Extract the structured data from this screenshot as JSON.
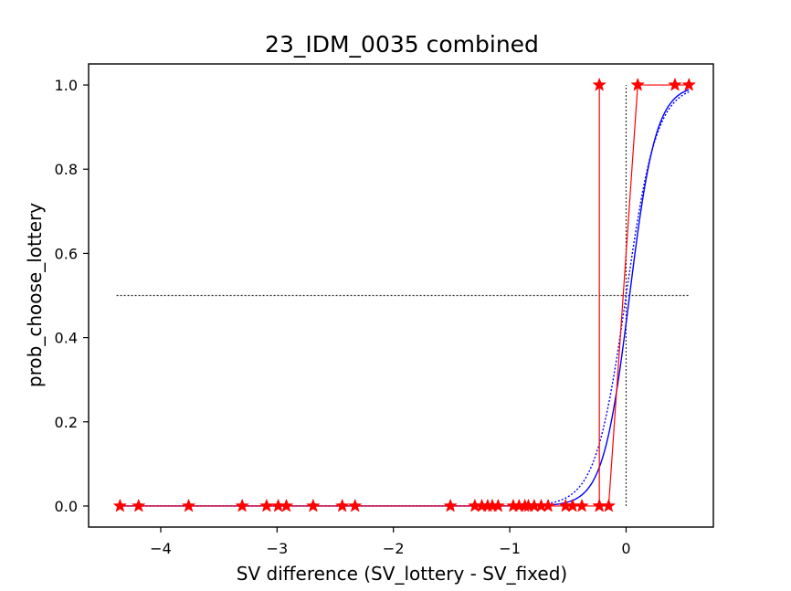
{
  "chart_data": {
    "type": "line",
    "title": "23_IDM_0035 combined",
    "xlabel": "SV difference (SV_lottery - SV_fixed)",
    "ylabel": "prob_choose_lottery",
    "xlim": [
      -4.62,
      0.75
    ],
    "ylim": [
      -0.05,
      1.05
    ],
    "x_ticks": [
      -4,
      -3,
      -2,
      -1,
      0
    ],
    "x_tick_labels": [
      "−4",
      "−3",
      "−2",
      "−1",
      "0"
    ],
    "y_ticks": [
      0.0,
      0.2,
      0.4,
      0.6,
      0.8,
      1.0
    ],
    "y_tick_labels": [
      "0.0",
      "0.2",
      "0.4",
      "0.6",
      "0.8",
      "1.0"
    ],
    "grid": false,
    "legend": "none",
    "colors": {
      "observed": "#ff0000",
      "fit": "#0000ff",
      "reference": "#333333"
    },
    "series": [
      {
        "style": "observed",
        "points": [
          [
            -4.35,
            0
          ],
          [
            -4.19,
            0
          ],
          [
            -3.76,
            0
          ],
          [
            -3.3,
            0
          ],
          [
            -3.09,
            0
          ],
          [
            -2.99,
            0
          ],
          [
            -2.92,
            0
          ],
          [
            -2.69,
            0
          ],
          [
            -2.44,
            0
          ],
          [
            -2.33,
            0
          ],
          [
            -1.51,
            0
          ],
          [
            -1.3,
            0
          ],
          [
            -1.24,
            0
          ],
          [
            -1.19,
            0
          ],
          [
            -1.15,
            0
          ],
          [
            -1.1,
            0
          ],
          [
            -0.97,
            0
          ],
          [
            -0.92,
            0
          ],
          [
            -0.87,
            0
          ],
          [
            -0.84,
            0
          ],
          [
            -0.79,
            0
          ],
          [
            -0.73,
            0
          ],
          [
            -0.67,
            0
          ],
          [
            -0.52,
            0
          ],
          [
            -0.46,
            0
          ],
          [
            -0.38,
            0
          ],
          [
            -0.23,
            0
          ],
          [
            -0.23,
            1
          ],
          [
            -0.23,
            0
          ],
          [
            -0.15,
            0
          ],
          [
            0.1,
            1
          ],
          [
            0.42,
            1
          ],
          [
            0.54,
            1
          ]
        ]
      },
      {
        "style": "fit",
        "slope": 8.8,
        "offset": 0.03,
        "x_range": [
          -4.35,
          0.54
        ]
      },
      {
        "style": "fit-dotted",
        "slope": 7.6,
        "offset": 0.0,
        "x_range": [
          -4.35,
          0.54
        ]
      }
    ],
    "reference_lines": [
      {
        "orientation": "horizontal",
        "y": 0.5,
        "x_range": [
          -4.38,
          0.54
        ]
      },
      {
        "orientation": "vertical",
        "x": 0.0,
        "y_range": [
          0.0,
          1.0
        ]
      }
    ]
  }
}
